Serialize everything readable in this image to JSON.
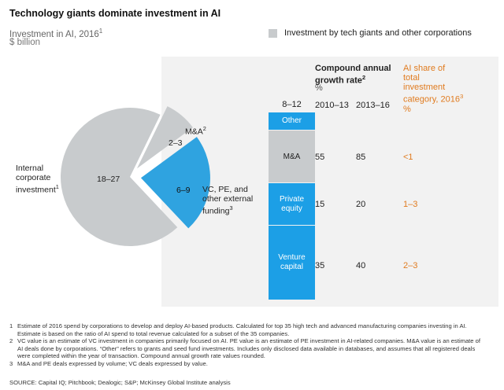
{
  "header": {
    "title": "Technology giants dominate investment in AI",
    "subtitle": "Investment in AI, 2016",
    "subtitle_sup": "1",
    "unit": "$ billion",
    "legend_label": "Investment by tech giants and other corporations"
  },
  "colors": {
    "gray_segment": "#c8cbcd",
    "blue_segment": "#2fa3e0",
    "bar_blue": "#1c9fe6",
    "accent_orange": "#e07b1f",
    "panel_bg": "#f2f2f2"
  },
  "chart_data": [
    {
      "type": "pie",
      "title": "Investment in AI, 2016",
      "unit": "$ billion",
      "slices": [
        {
          "label": "Internal corporate investment",
          "value_range": "18–27",
          "value": 22.5
        },
        {
          "label": "M&A",
          "value_range": "2–3",
          "value": 2.5
        },
        {
          "label": "VC, PE, and other external funding",
          "value_range": "6–9",
          "value": 7.5
        }
      ]
    },
    {
      "type": "bar",
      "stacked": true,
      "total_range": "8–12",
      "segments": [
        {
          "label": "Other",
          "value": 1
        },
        {
          "label": "M&A",
          "value": 2.5
        },
        {
          "label": "Private equity",
          "value": 2
        },
        {
          "label": "Venture capital",
          "value": 3.5
        }
      ]
    },
    {
      "type": "table",
      "group_header": "Compound annual growth rate",
      "group_header_sup": "2",
      "group_unit": "%",
      "columns": [
        "2010–13",
        "2013–16"
      ],
      "share_header": "AI share of total investment category, 2016",
      "share_header_sup": "3",
      "share_unit": "%",
      "rows": [
        {
          "label": "M&A",
          "cagr_2010_13": "55",
          "cagr_2013_16": "85",
          "share": "<1"
        },
        {
          "label": "Private equity",
          "cagr_2010_13": "15",
          "cagr_2013_16": "20",
          "share": "1–3"
        },
        {
          "label": "Venture capital",
          "cagr_2010_13": "35",
          "cagr_2013_16": "40",
          "share": "2–3"
        }
      ]
    }
  ],
  "pie_labels": {
    "internal": {
      "name_lines": [
        "Internal",
        "corporate",
        "investment"
      ],
      "sup": "1",
      "value": "18–27"
    },
    "ma": {
      "name": "M&A",
      "sup": "2",
      "value": "2–3"
    },
    "vc": {
      "name_lines": [
        "VC, PE, and",
        "other external",
        "funding"
      ],
      "sup": "3",
      "value": "6–9"
    }
  },
  "bar_labels": {
    "total": "8–12",
    "other": "Other",
    "ma": "M&A",
    "pe": [
      "Private",
      "equity"
    ],
    "vc": [
      "Venture",
      "capital"
    ]
  },
  "table_text": {
    "cagr_lines": [
      "Compound annual",
      "growth rate"
    ],
    "cagr_sup": "2",
    "cagr_unit": "%",
    "col1": "2010–13",
    "col2": "2013–16",
    "share_lines": [
      "AI share of",
      "total",
      "investment",
      "category, 2016"
    ],
    "share_sup": "3",
    "share_unit": "%",
    "rows": [
      {
        "c1": "55",
        "c2": "85",
        "s": "<1"
      },
      {
        "c1": "15",
        "c2": "20",
        "s": "1–3"
      },
      {
        "c1": "35",
        "c2": "40",
        "s": "2–3"
      }
    ]
  },
  "footnotes": [
    {
      "num": "1",
      "text": "Estimate of 2016 spend by corporations to develop and deploy AI-based products. Calculated for top 35 high tech and advanced manufacturing companies investing in AI. Estimate is based on the ratio of AI spend to total revenue calculated for a subset of the 35 companies."
    },
    {
      "num": "2",
      "text": "VC value is an estimate of VC investment in companies primarily focused on AI. PE value is an estimate of PE investment in AI-related companies. M&A value is an estimate of AI deals done by corporations. “Other” refers to grants and seed fund investments. Includes only disclosed data available in databases, and assumes that all registered deals were completed within the year of transaction. Compound annual growth rate values rounded."
    },
    {
      "num": "3",
      "text": "M&A and PE deals expressed by volume; VC deals expressed by value."
    }
  ],
  "source": "SOURCE:  Capital IQ; Pitchbook; Dealogic; S&P; McKinsey Global Institute analysis"
}
